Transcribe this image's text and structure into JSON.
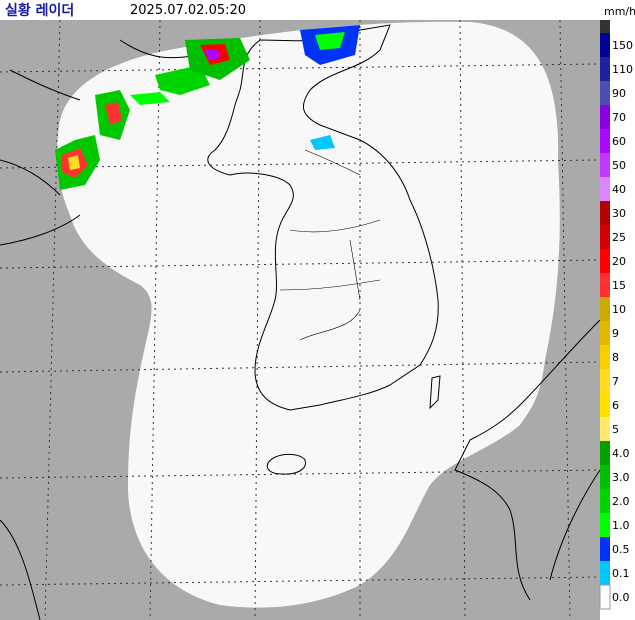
{
  "header": {
    "title": "실황 레이더",
    "time": "2025.07.02.05:20",
    "unit": "mm/h"
  },
  "legend": [
    {
      "label": "150",
      "color": "#000390"
    },
    {
      "label": "110",
      "color": "#1f219d"
    },
    {
      "label": "90",
      "color": "#4c4eb1"
    },
    {
      "label": "70",
      "color": "#8a00e0"
    },
    {
      "label": "60",
      "color": "#ad07ff"
    },
    {
      "label": "50",
      "color": "#c13aff"
    },
    {
      "label": "40",
      "color": "#da87ff"
    },
    {
      "label": "30",
      "color": "#b40000"
    },
    {
      "label": "25",
      "color": "#d20000"
    },
    {
      "label": "20",
      "color": "#ff0000"
    },
    {
      "label": "15",
      "color": "#ff3232"
    },
    {
      "label": "10",
      "color": "#ccaa00"
    },
    {
      "label": "9",
      "color": "#e0b900"
    },
    {
      "label": "8",
      "color": "#f9cd00"
    },
    {
      "label": "7",
      "color": "#ffdc1f"
    },
    {
      "label": "6",
      "color": "#ffe100"
    },
    {
      "label": "5",
      "color": "#ffea6e"
    },
    {
      "label": "4.0",
      "color": "#00a000"
    },
    {
      "label": "3.0",
      "color": "#00be00"
    },
    {
      "label": "2.0",
      "color": "#00d500"
    },
    {
      "label": "1.0",
      "color": "#00ff00"
    },
    {
      "label": "0.5",
      "color": "#0033f5"
    },
    {
      "label": "0.1",
      "color": "#00c8ff"
    },
    {
      "label": "0.0",
      "color": "#ffffff"
    }
  ]
}
